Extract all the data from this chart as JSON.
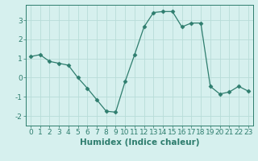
{
  "x": [
    0,
    1,
    2,
    3,
    4,
    5,
    6,
    7,
    8,
    9,
    10,
    11,
    12,
    13,
    14,
    15,
    16,
    17,
    18,
    19,
    20,
    21,
    22,
    23
  ],
  "y": [
    1.1,
    1.2,
    0.85,
    0.75,
    0.65,
    0.0,
    -0.55,
    -1.15,
    -1.75,
    -1.8,
    -0.2,
    1.2,
    2.65,
    3.4,
    3.45,
    3.45,
    2.65,
    2.85,
    2.85,
    -0.45,
    -0.85,
    -0.75,
    -0.45,
    -0.7
  ],
  "title": "",
  "xlabel": "Humidex (Indice chaleur)",
  "ylabel": "",
  "xlim": [
    -0.5,
    23.5
  ],
  "ylim": [
    -2.5,
    3.8
  ],
  "yticks": [
    -2,
    -1,
    0,
    1,
    2,
    3
  ],
  "xticks": [
    0,
    1,
    2,
    3,
    4,
    5,
    6,
    7,
    8,
    9,
    10,
    11,
    12,
    13,
    14,
    15,
    16,
    17,
    18,
    19,
    20,
    21,
    22,
    23
  ],
  "line_color": "#2e7d6e",
  "marker": "D",
  "marker_size": 2.5,
  "bg_color": "#d6f0ee",
  "grid_color": "#b8dcd8",
  "tick_label_fontsize": 6.5,
  "axis_label_fontsize": 7.5
}
